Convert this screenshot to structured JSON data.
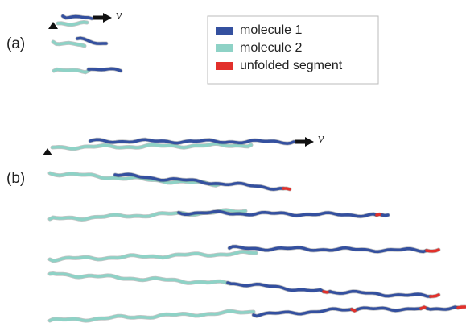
{
  "panels": [
    {
      "label": "(a)",
      "velocity_label": "v"
    },
    {
      "label": "(b)",
      "velocity_label": "v"
    }
  ],
  "legend": [
    {
      "name": "molecule 1",
      "color": "#34509f"
    },
    {
      "name": "molecule 2",
      "color": "#8ed2c6"
    },
    {
      "name": "unfolded segment",
      "color": "#e2302b"
    }
  ]
}
